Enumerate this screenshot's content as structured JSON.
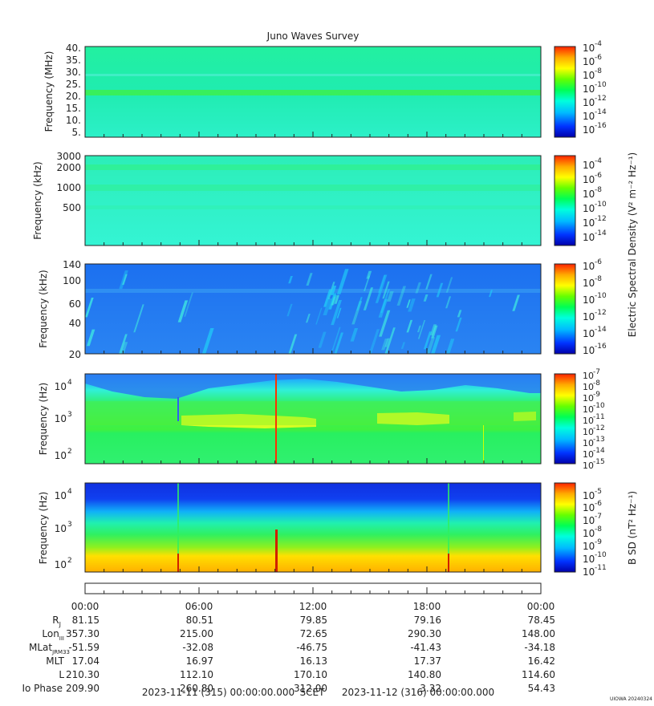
{
  "title": "Juno Waves Survey",
  "watermark": "UIOWA 20240324",
  "footer": {
    "start": "2023-11-11 (315) 00:00:00.000",
    "scet": "SCET",
    "end": "2023-11-12 (316) 00:00:00.000"
  },
  "colorbar_labels": {
    "electric": "Electric Spectral Density (V² m⁻² Hz⁻¹)",
    "magnetic": "B SD (nT² Hz⁻¹)"
  },
  "colors": {
    "colormap": [
      "#0000aa",
      "#0033ff",
      "#00bbff",
      "#00ffdd",
      "#00ff55",
      "#66ff00",
      "#ffff00",
      "#ffaa00",
      "#ff2200"
    ],
    "axis": "#222222"
  },
  "chart_data": [
    {
      "type": "heatmap",
      "ylabel": "Frequency (MHz)",
      "y_ticks": [
        "40.",
        "35.",
        "30.",
        "25.",
        "20.",
        "15.",
        "10.",
        "5."
      ],
      "colorbar_ticks": [
        "-4",
        "-6",
        "-8",
        "-10",
        "-12",
        "-14",
        "-16"
      ],
      "colorbar_range": [
        -17,
        -4
      ]
    },
    {
      "type": "heatmap",
      "ylabel": "Frequency (kHz)",
      "y_ticks": [
        "3000",
        "2000",
        "1000",
        "500"
      ],
      "colorbar_ticks": [
        "-4",
        "-6",
        "-8",
        "-10",
        "-12",
        "-14"
      ],
      "colorbar_range": [
        -15,
        -3
      ]
    },
    {
      "type": "heatmap",
      "ylabel": "Frequency (kHz)",
      "y_ticks": [
        "140",
        "100",
        "60",
        "40",
        "20"
      ],
      "colorbar_ticks": [
        "-6",
        "-8",
        "-10",
        "-12",
        "-14",
        "-16"
      ],
      "colorbar_range": [
        -16,
        -6
      ]
    },
    {
      "type": "heatmap",
      "ylabel": "Frequency (Hz)",
      "y_ticks": [
        "4",
        "3",
        "2"
      ],
      "colorbar_ticks": [
        "-7",
        "-8",
        "-9",
        "-10",
        "-11",
        "-12",
        "-13",
        "-14",
        "-15"
      ],
      "colorbar_range": [
        -15,
        -7
      ]
    },
    {
      "type": "heatmap",
      "ylabel": "Frequency (Hz)",
      "y_ticks": [
        "4",
        "3",
        "2"
      ],
      "colorbar_ticks": [
        "-5",
        "-6",
        "-7",
        "-8",
        "-9",
        "-10",
        "-11"
      ],
      "colorbar_range": [
        -11,
        -4.5
      ]
    }
  ],
  "x_axis": {
    "times": [
      "00:00",
      "06:00",
      "12:00",
      "18:00",
      "00:00"
    ],
    "rows": [
      {
        "label": "R",
        "sub": "J",
        "values": [
          "81.15",
          "80.51",
          "79.85",
          "79.16",
          "78.45"
        ]
      },
      {
        "label": "Lon",
        "sub": "III",
        "values": [
          "357.30",
          "215.00",
          "72.65",
          "290.30",
          "148.00"
        ]
      },
      {
        "label": "MLat",
        "sub": "JRM33",
        "values": [
          "-51.59",
          "-32.08",
          "-46.75",
          "-41.43",
          "-34.18"
        ]
      },
      {
        "label": "MLT",
        "sub": "",
        "values": [
          "17.04",
          "16.97",
          "16.13",
          "17.37",
          "16.42"
        ]
      },
      {
        "label": "L",
        "sub": "",
        "values": [
          "210.30",
          "112.10",
          "170.10",
          "140.80",
          "114.60"
        ]
      },
      {
        "label": "Io Phase",
        "sub": "",
        "values": [
          "209.90",
          "260.80",
          "312.00",
          "3.32",
          "54.43"
        ]
      }
    ]
  }
}
